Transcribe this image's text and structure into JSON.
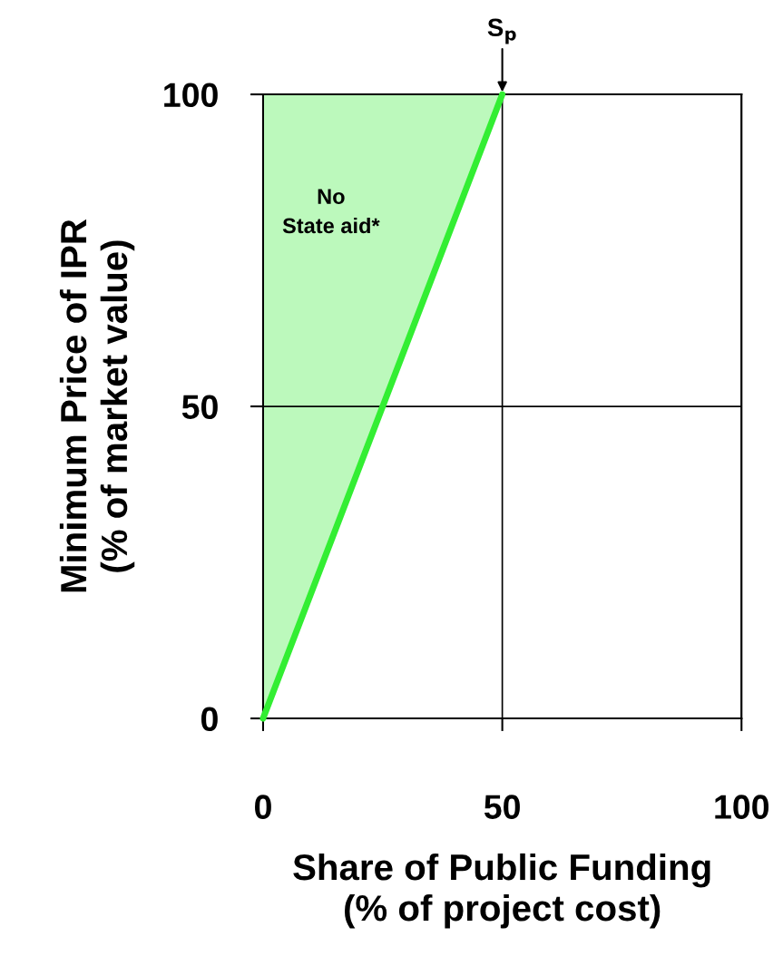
{
  "chart_data": {
    "type": "line",
    "xlabel": "Share of Public Funding\n(% of project cost)",
    "ylabel": "Minimum Price of IPR\n(% of market value)",
    "series": [
      {
        "x": [
          0,
          50
        ],
        "values": [
          0,
          100
        ],
        "lower": [
          0,
          100
        ],
        "upper": [
          100,
          100
        ],
        "color": "#33ee33"
      }
    ],
    "xlim": [
      0,
      100
    ],
    "ylim": [
      0,
      100
    ],
    "xticks": [
      0,
      50,
      100
    ],
    "yticks": [
      0,
      50,
      100
    ],
    "grid": true,
    "annotations": [
      "No\nState aid*",
      {
        "text": "S$_{p}$",
        "x": 50,
        "y": 100
      }
    ]
  }
}
